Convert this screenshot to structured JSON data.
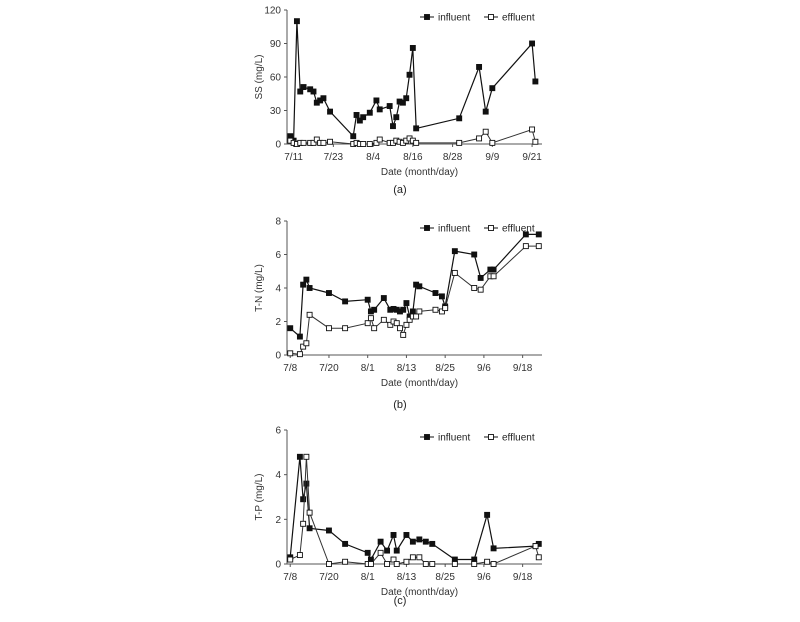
{
  "chart_data": [
    {
      "type": "line",
      "caption": "(a)",
      "xlabel": "Date (month/day)",
      "ylabel": "SS (mg/L)",
      "x_unit": "day of year",
      "xlim": [
        190,
        267
      ],
      "ylim": [
        0,
        120
      ],
      "y_ticks": [
        0,
        30,
        60,
        90,
        120
      ],
      "x_ticks": [
        {
          "v": 192,
          "t": "7/11"
        },
        {
          "v": 204,
          "t": "7/23"
        },
        {
          "v": 216,
          "t": "8/4"
        },
        {
          "v": 228,
          "t": "8/16"
        },
        {
          "v": 240,
          "t": "8/28"
        },
        {
          "v": 252,
          "t": "9/9"
        },
        {
          "v": 264,
          "t": "9/21"
        }
      ],
      "legend": "top-right",
      "series": [
        {
          "name": "influent",
          "marker": "filled-square",
          "x": [
            191,
            192,
            193,
            194,
            195,
            197,
            198,
            199,
            200,
            201,
            203,
            210,
            211,
            212,
            213,
            215,
            217,
            218,
            221,
            222,
            223,
            224,
            225,
            226,
            227,
            228,
            229,
            242,
            248,
            250,
            252,
            264,
            265
          ],
          "y": [
            7,
            3,
            110,
            47,
            51,
            49,
            47,
            37,
            39,
            41,
            29,
            7,
            26,
            21,
            24,
            28,
            39,
            31,
            34,
            16,
            24,
            38,
            37,
            41,
            62,
            86,
            14,
            23,
            69,
            29,
            50,
            90,
            56
          ]
        },
        {
          "name": "effluent",
          "marker": "open-square",
          "x": [
            191,
            192,
            193,
            194,
            195,
            197,
            198,
            199,
            200,
            201,
            203,
            210,
            211,
            212,
            213,
            215,
            217,
            218,
            221,
            222,
            223,
            224,
            225,
            226,
            227,
            228,
            229,
            242,
            248,
            250,
            252,
            264,
            265
          ],
          "y": [
            3,
            1,
            0,
            1,
            1,
            1,
            1,
            4,
            1,
            1,
            2,
            0,
            1,
            0,
            0,
            0,
            1,
            4,
            1,
            1,
            3,
            2,
            1,
            3,
            5,
            3,
            1,
            1,
            5,
            11,
            1,
            13,
            2
          ]
        }
      ]
    },
    {
      "type": "line",
      "caption": "(b)",
      "xlabel": "Date (month/day)",
      "ylabel": "T-N (mg/L)",
      "x_unit": "day of year",
      "xlim": [
        188,
        267
      ],
      "ylim": [
        0,
        8
      ],
      "y_ticks": [
        0,
        2,
        4,
        6,
        8
      ],
      "x_ticks": [
        {
          "v": 189,
          "t": "7/8"
        },
        {
          "v": 201,
          "t": "7/20"
        },
        {
          "v": 213,
          "t": "8/1"
        },
        {
          "v": 225,
          "t": "8/13"
        },
        {
          "v": 237,
          "t": "8/25"
        },
        {
          "v": 249,
          "t": "9/6"
        },
        {
          "v": 261,
          "t": "9/18"
        }
      ],
      "legend": "top-right",
      "series": [
        {
          "name": "influent",
          "marker": "filled-square",
          "x": [
            189,
            192,
            193,
            194,
            195,
            201,
            206,
            213,
            214,
            215,
            218,
            220,
            221,
            222,
            223,
            224,
            225,
            226,
            227,
            228,
            229,
            234,
            236,
            237,
            240,
            246,
            248,
            251,
            252,
            262,
            266
          ],
          "y": [
            1.6,
            1.1,
            4.2,
            4.5,
            4.0,
            3.7,
            3.2,
            3.3,
            2.6,
            2.7,
            3.4,
            2.7,
            2.75,
            2.7,
            2.6,
            2.7,
            3.1,
            2.3,
            2.6,
            4.2,
            4.1,
            3.7,
            3.5,
            2.9,
            6.2,
            6.0,
            4.6,
            5.1,
            5.1,
            7.2,
            7.2
          ]
        },
        {
          "name": "effluent",
          "marker": "open-square",
          "x": [
            189,
            192,
            193,
            194,
            195,
            201,
            206,
            213,
            214,
            215,
            218,
            220,
            221,
            222,
            223,
            224,
            225,
            226,
            227,
            228,
            229,
            234,
            236,
            237,
            240,
            246,
            248,
            251,
            252,
            262,
            266
          ],
          "y": [
            0.1,
            0.05,
            0.5,
            0.7,
            2.4,
            1.6,
            1.6,
            1.9,
            2.2,
            1.6,
            2.1,
            1.8,
            2.0,
            1.9,
            1.6,
            1.2,
            1.8,
            2.1,
            2.3,
            2.3,
            2.6,
            2.7,
            2.6,
            2.8,
            4.9,
            4.0,
            3.9,
            4.7,
            4.7,
            6.5,
            6.5
          ]
        }
      ]
    },
    {
      "type": "line",
      "caption": "(c)",
      "xlabel": "Date (month/day)",
      "ylabel": "T-P (mg/L)",
      "x_unit": "day of year",
      "xlim": [
        188,
        267
      ],
      "ylim": [
        0,
        6
      ],
      "y_ticks": [
        0,
        2,
        4,
        6
      ],
      "x_ticks": [
        {
          "v": 189,
          "t": "7/8"
        },
        {
          "v": 201,
          "t": "7/20"
        },
        {
          "v": 213,
          "t": "8/1"
        },
        {
          "v": 225,
          "t": "8/13"
        },
        {
          "v": 237,
          "t": "8/25"
        },
        {
          "v": 249,
          "t": "9/6"
        },
        {
          "v": 261,
          "t": "9/18"
        }
      ],
      "legend": "top-right",
      "series": [
        {
          "name": "influent",
          "marker": "filled-square",
          "x": [
            189,
            192,
            193,
            194,
            195,
            201,
            206,
            213,
            214,
            217,
            219,
            221,
            222,
            225,
            227,
            229,
            231,
            233,
            240,
            246,
            250,
            252,
            265,
            266
          ],
          "y": [
            0.3,
            4.8,
            2.9,
            3.6,
            1.6,
            1.5,
            0.9,
            0.5,
            0.2,
            1.0,
            0.6,
            1.3,
            0.6,
            1.3,
            1.0,
            1.1,
            1.0,
            0.9,
            0.2,
            0.2,
            2.2,
            0.7,
            0.8,
            0.9
          ]
        },
        {
          "name": "effluent",
          "marker": "open-square",
          "x": [
            189,
            192,
            193,
            194,
            195,
            201,
            206,
            213,
            214,
            217,
            219,
            221,
            222,
            225,
            227,
            229,
            231,
            233,
            240,
            246,
            250,
            252,
            265,
            266
          ],
          "y": [
            0.2,
            0.4,
            1.8,
            4.8,
            2.3,
            0.0,
            0.1,
            0.0,
            0.0,
            0.5,
            0.0,
            0.2,
            0.0,
            0.1,
            0.3,
            0.3,
            0.0,
            0.0,
            0.0,
            0.0,
            0.1,
            0.0,
            0.8,
            0.3
          ]
        }
      ]
    }
  ]
}
